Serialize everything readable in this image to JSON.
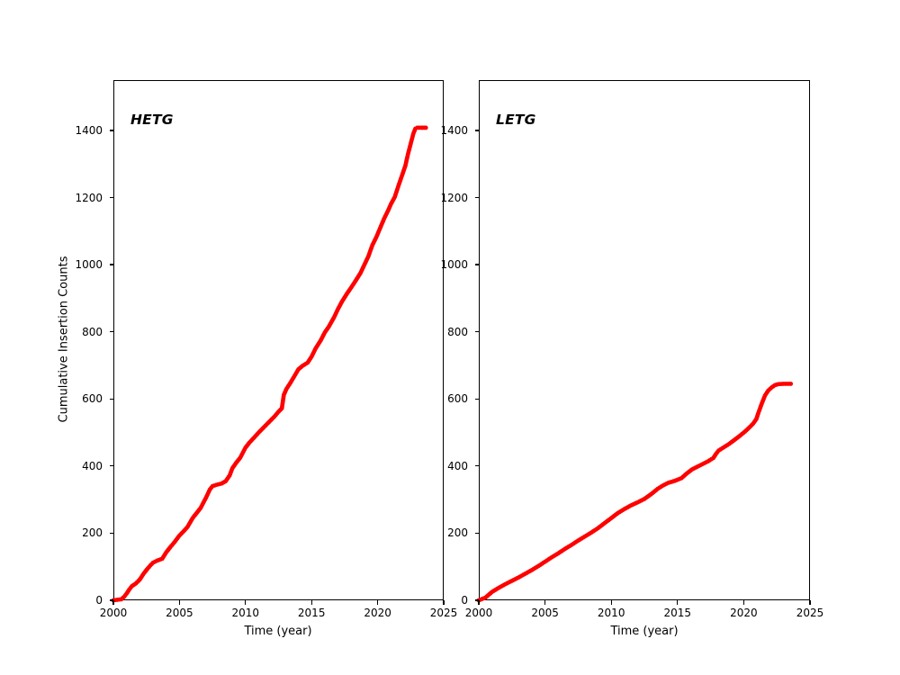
{
  "figure": {
    "background": "#ffffff",
    "ylabel": "Cumulative Insertion Counts"
  },
  "chart_data": [
    {
      "type": "scatter",
      "title": "HETG",
      "xlabel": "Time (year)",
      "ylabel": "Cumulative Insertion Counts",
      "color": "#ff0000",
      "marker": "circle",
      "grid": false,
      "xlim": [
        2000,
        2025
      ],
      "ylim": [
        0,
        1550
      ],
      "x_ticks": [
        "2000",
        "2005",
        "2010",
        "2015",
        "2020",
        "2025"
      ],
      "y_ticks": [
        "0",
        "200",
        "400",
        "600",
        "800",
        "1000",
        "1200",
        "1400"
      ],
      "points": [
        [
          2000.0,
          0
        ],
        [
          2000.6,
          3
        ],
        [
          2000.8,
          10
        ],
        [
          2001.0,
          20
        ],
        [
          2001.2,
          32
        ],
        [
          2001.4,
          42
        ],
        [
          2001.7,
          50
        ],
        [
          2002.0,
          62
        ],
        [
          2002.3,
          80
        ],
        [
          2002.6,
          95
        ],
        [
          2002.8,
          104
        ],
        [
          2003.0,
          112
        ],
        [
          2003.3,
          118
        ],
        [
          2003.7,
          124
        ],
        [
          2004.0,
          143
        ],
        [
          2004.3,
          158
        ],
        [
          2004.6,
          172
        ],
        [
          2005.0,
          193
        ],
        [
          2005.3,
          205
        ],
        [
          2005.6,
          218
        ],
        [
          2006.0,
          245
        ],
        [
          2006.3,
          260
        ],
        [
          2006.6,
          275
        ],
        [
          2007.0,
          305
        ],
        [
          2007.3,
          330
        ],
        [
          2007.5,
          340
        ],
        [
          2007.8,
          344
        ],
        [
          2008.2,
          348
        ],
        [
          2008.5,
          355
        ],
        [
          2008.8,
          372
        ],
        [
          2009.0,
          393
        ],
        [
          2009.3,
          410
        ],
        [
          2009.6,
          425
        ],
        [
          2010.0,
          455
        ],
        [
          2010.3,
          470
        ],
        [
          2010.7,
          487
        ],
        [
          2011.0,
          500
        ],
        [
          2011.4,
          516
        ],
        [
          2011.8,
          532
        ],
        [
          2012.2,
          548
        ],
        [
          2012.5,
          562
        ],
        [
          2012.75,
          572
        ],
        [
          2012.9,
          612
        ],
        [
          2013.1,
          630
        ],
        [
          2013.4,
          648
        ],
        [
          2013.7,
          668
        ],
        [
          2014.0,
          688
        ],
        [
          2014.3,
          698
        ],
        [
          2014.7,
          708
        ],
        [
          2015.0,
          726
        ],
        [
          2015.3,
          750
        ],
        [
          2015.7,
          775
        ],
        [
          2016.0,
          798
        ],
        [
          2016.3,
          815
        ],
        [
          2016.7,
          843
        ],
        [
          2017.0,
          868
        ],
        [
          2017.3,
          890
        ],
        [
          2017.7,
          915
        ],
        [
          2018.0,
          932
        ],
        [
          2018.3,
          950
        ],
        [
          2018.7,
          975
        ],
        [
          2019.0,
          1000
        ],
        [
          2019.3,
          1025
        ],
        [
          2019.6,
          1058
        ],
        [
          2019.9,
          1082
        ],
        [
          2020.2,
          1110
        ],
        [
          2020.5,
          1138
        ],
        [
          2020.8,
          1162
        ],
        [
          2021.0,
          1180
        ],
        [
          2021.3,
          1202
        ],
        [
          2021.6,
          1238
        ],
        [
          2021.9,
          1272
        ],
        [
          2022.1,
          1295
        ],
        [
          2022.3,
          1330
        ],
        [
          2022.5,
          1360
        ],
        [
          2022.7,
          1390
        ],
        [
          2022.85,
          1405
        ],
        [
          2023.0,
          1408
        ],
        [
          2023.3,
          1408
        ],
        [
          2023.65,
          1408
        ]
      ]
    },
    {
      "type": "scatter",
      "title": "LETG",
      "xlabel": "Time (year)",
      "ylabel": "Cumulative Insertion Counts",
      "color": "#ff0000",
      "marker": "circle",
      "grid": false,
      "xlim": [
        2000,
        2025
      ],
      "ylim": [
        0,
        1550
      ],
      "x_ticks": [
        "2000",
        "2005",
        "2010",
        "2015",
        "2020",
        "2025"
      ],
      "y_ticks": [
        "0",
        "200",
        "400",
        "600",
        "800",
        "1000",
        "1200",
        "1400"
      ],
      "points": [
        [
          2000.0,
          0
        ],
        [
          2000.5,
          8
        ],
        [
          2001.0,
          25
        ],
        [
          2001.5,
          37
        ],
        [
          2002.0,
          48
        ],
        [
          2002.5,
          58
        ],
        [
          2003.0,
          68
        ],
        [
          2003.5,
          79
        ],
        [
          2004.0,
          90
        ],
        [
          2004.5,
          102
        ],
        [
          2005.0,
          115
        ],
        [
          2005.5,
          128
        ],
        [
          2006.0,
          140
        ],
        [
          2006.5,
          153
        ],
        [
          2007.0,
          165
        ],
        [
          2007.5,
          178
        ],
        [
          2008.0,
          190
        ],
        [
          2008.5,
          202
        ],
        [
          2009.0,
          215
        ],
        [
          2009.5,
          230
        ],
        [
          2010.0,
          245
        ],
        [
          2010.5,
          260
        ],
        [
          2011.0,
          272
        ],
        [
          2011.5,
          283
        ],
        [
          2012.0,
          292
        ],
        [
          2012.5,
          302
        ],
        [
          2013.0,
          316
        ],
        [
          2013.5,
          332
        ],
        [
          2013.9,
          342
        ],
        [
          2014.3,
          350
        ],
        [
          2014.8,
          356
        ],
        [
          2015.3,
          364
        ],
        [
          2015.7,
          378
        ],
        [
          2016.1,
          390
        ],
        [
          2016.5,
          398
        ],
        [
          2016.9,
          406
        ],
        [
          2017.3,
          414
        ],
        [
          2017.7,
          424
        ],
        [
          2017.9,
          436
        ],
        [
          2018.1,
          446
        ],
        [
          2018.5,
          456
        ],
        [
          2018.9,
          466
        ],
        [
          2019.3,
          478
        ],
        [
          2019.7,
          490
        ],
        [
          2020.1,
          503
        ],
        [
          2020.4,
          514
        ],
        [
          2020.7,
          526
        ],
        [
          2020.95,
          540
        ],
        [
          2021.1,
          558
        ],
        [
          2021.35,
          585
        ],
        [
          2021.6,
          610
        ],
        [
          2021.85,
          625
        ],
        [
          2022.1,
          634
        ],
        [
          2022.35,
          641
        ],
        [
          2022.6,
          644
        ],
        [
          2023.0,
          645
        ],
        [
          2023.55,
          645
        ]
      ]
    }
  ]
}
